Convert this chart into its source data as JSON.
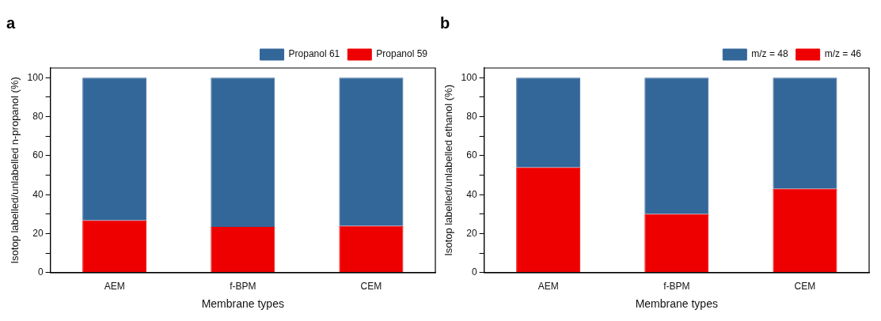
{
  "chart_data": [
    {
      "type": "bar",
      "title": "a",
      "xlabel": "Membrane types",
      "ylabel": "Isotop labelled/unlabelled n-propanol (%)",
      "categories": [
        "AEM",
        "f-BPM",
        "CEM"
      ],
      "stacked": true,
      "series": [
        {
          "name": "Propanol 59",
          "color": "#ee0000",
          "values": [
            26.8,
            23.5,
            24
          ]
        },
        {
          "name": "Propanol 61",
          "color": "#336699",
          "values": [
            73.2,
            76.5,
            76
          ]
        }
      ],
      "ylim": [
        0,
        105
      ],
      "yticks": [
        0,
        {
          "value": 10,
          "label": null
        },
        20,
        {
          "value": 30,
          "label": null
        },
        40,
        {
          "value": 50,
          "label": null
        },
        60,
        {
          "value": 70,
          "label": null
        },
        80,
        {
          "value": 90,
          "label": null
        },
        100
      ],
      "grid": false,
      "legend": "top right"
    },
    {
      "type": "bar",
      "title": "b",
      "xlabel": "Membrane types",
      "ylabel": "Isotop labelled/unlabelled ethanol (%)",
      "categories": [
        "AEM",
        "f-BPM",
        "CEM"
      ],
      "stacked": true,
      "series": [
        {
          "name": "m/z = 46",
          "color": "#ee0000",
          "values": [
            54,
            30,
            43
          ]
        },
        {
          "name": "m/z = 48",
          "color": "#336699",
          "values": [
            46,
            70,
            57
          ]
        }
      ],
      "ylim": [
        0,
        105
      ],
      "yticks": [
        0,
        {
          "value": 10,
          "label": null
        },
        20,
        {
          "value": 30,
          "label": null
        },
        40,
        {
          "value": 50,
          "label": null
        },
        60,
        {
          "value": 70,
          "label": null
        },
        80,
        {
          "value": 90,
          "label": null
        },
        100
      ],
      "grid": false,
      "legend": "top right"
    }
  ]
}
